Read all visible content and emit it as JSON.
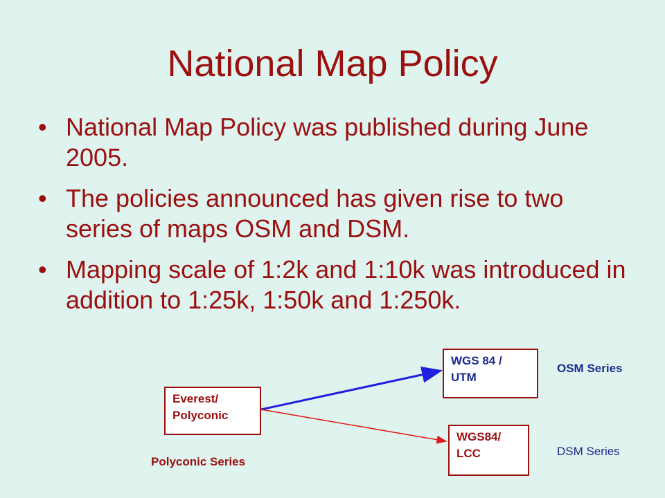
{
  "slide": {
    "title": "National Map Policy",
    "bullets": [
      {
        "text": "National Map Policy was published during June 2005."
      },
      {
        "text": "The policies announced has given rise to two series of maps OSM and DSM."
      },
      {
        "text": "Mapping scale of 1:2k and 1:10k was introduced in addition to 1:25k, 1:50k and 1:250k."
      }
    ],
    "bullet_glyph": "•"
  },
  "diagram": {
    "boxes": {
      "wgs84_utm": "WGS 84 / UTM",
      "everest_polyconic": "Everest/ Polyconic",
      "wgs84_lcc": "WGS84/ LCC"
    },
    "labels": {
      "osm": "OSM Series",
      "dsm": "DSM Series",
      "polyconic": "Polyconic Series"
    }
  },
  "colors": {
    "background": "#dff3ef",
    "title_text": "#9b0f0f",
    "blue": "#1a2c8c",
    "arrow_blue": "#1f1fe0",
    "arrow_red": "#e01a1a"
  }
}
